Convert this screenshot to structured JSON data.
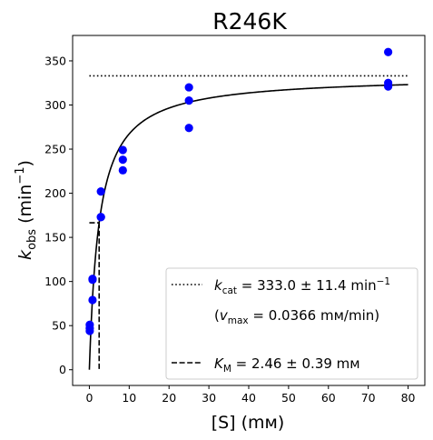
{
  "chart_data": {
    "type": "scatter",
    "title": "R246K",
    "xlabel": "[S] (mм)",
    "ylabel": "k_obs (min⁻¹)",
    "xlim": [
      -4.2,
      84.2
    ],
    "ylim": [
      -17.8,
      378.8
    ],
    "xticks": [
      0,
      10,
      20,
      30,
      40,
      50,
      60,
      70,
      80
    ],
    "yticks": [
      0,
      50,
      100,
      150,
      200,
      250,
      300,
      350
    ],
    "grid": false,
    "legend_position": "lower-right",
    "series": [
      {
        "type": "scatter",
        "color": "#0000ff",
        "points": [
          [
            0.1,
            44
          ],
          [
            0.1,
            47
          ],
          [
            0.1,
            51
          ],
          [
            0.8,
            79
          ],
          [
            0.8,
            102
          ],
          [
            0.8,
            103
          ],
          [
            2.9,
            173
          ],
          [
            2.9,
            173
          ],
          [
            2.9,
            202
          ],
          [
            8.4,
            226
          ],
          [
            8.4,
            238
          ],
          [
            8.4,
            249
          ],
          [
            25.0,
            274
          ],
          [
            25.0,
            305
          ],
          [
            25.0,
            320
          ],
          [
            75.0,
            321
          ],
          [
            75.0,
            325
          ],
          [
            75.0,
            360
          ]
        ]
      },
      {
        "type": "fit-curve",
        "model": "michaelis-menten",
        "kcat": 333.0,
        "km": 2.46,
        "x_range": [
          0,
          80
        ],
        "color": "#000000"
      },
      {
        "type": "hline",
        "style": "dotted",
        "y": 333.0,
        "x_range": [
          0,
          80
        ],
        "color": "#000000"
      },
      {
        "type": "km-marker",
        "style": "dashed",
        "x": 2.46,
        "y": 166.5,
        "x_start": 0,
        "color": "#000000"
      }
    ],
    "legend": {
      "entries": [
        {
          "style": "dotted",
          "label_symbol": "k",
          "label_sub": "cat",
          "label_rest": " = 333.0 ± 11.4 min",
          "label_sup": "−1"
        },
        {
          "style": "none",
          "label_pre": "(",
          "label_symbol": "v",
          "label_sub": "max",
          "label_rest": " = 0.0366 mм/min)"
        },
        {
          "style": "dashed",
          "label_symbol": "K",
          "label_sub": "M",
          "label_rest": " = 2.46 ± 0.39 mм"
        }
      ]
    }
  }
}
